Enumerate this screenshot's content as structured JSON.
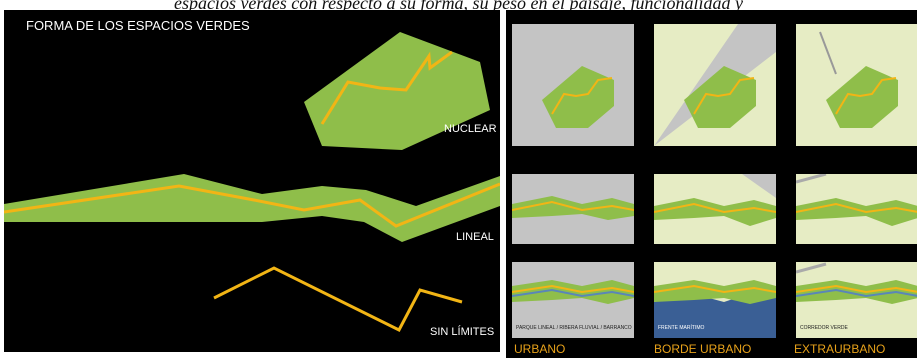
{
  "caption_text": "espacios verdes con respecto a su forma, su peso en el paisaje, funcionalidad y",
  "left_panel": {
    "title": "FORMA DE LOS ESPACIOS VERDES",
    "labels": {
      "nuclear": "NUCLEAR",
      "lineal": "LINEAL",
      "sin_limites": "SIN LÍMITES"
    }
  },
  "right_panel": {
    "thumb_labels": {
      "urbano": "PARQUE LINEAL / RIBERA FLUVIAL / BARRANCO",
      "borde": "FRENTE MARÍTIMO",
      "extra": "CORREDOR VERDE"
    },
    "column_labels": [
      "URBANO",
      "BORDE URBANO",
      "EXTRAURBANO"
    ]
  },
  "colors": {
    "background": "#000000",
    "green_fill": "#8fbe4a",
    "yellow_line": "#f2b515",
    "urban_gray": "#c4c4c4",
    "pale_green": "#e6ecc4",
    "sea_blue": "#3a5f95",
    "label_orange": "#e8a21a"
  }
}
